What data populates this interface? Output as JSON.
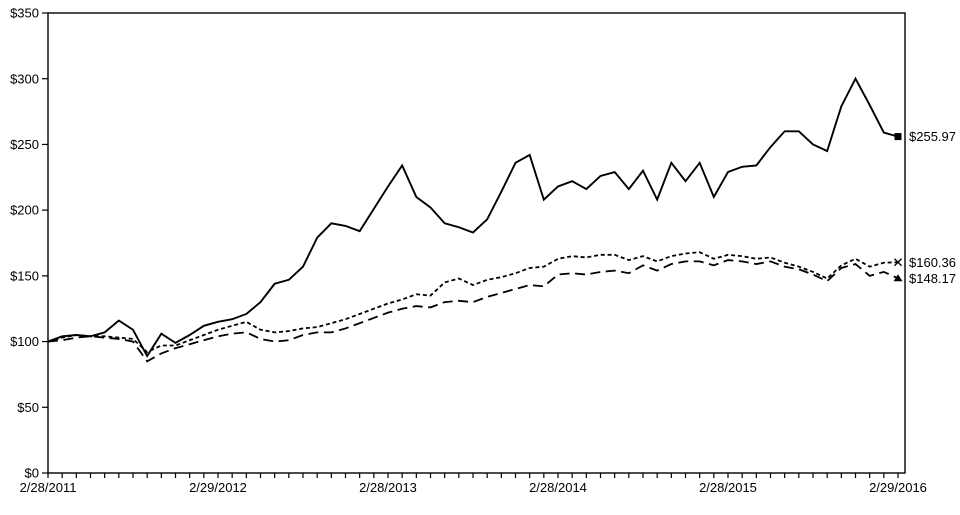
{
  "chart_data": {
    "type": "line",
    "title": "",
    "xlabel": "",
    "ylabel": "",
    "grid": false,
    "legend": "none",
    "background_color": "#ffffff",
    "line_color": "#000000",
    "ylim": [
      0,
      350
    ],
    "x_months_total": 60,
    "x_minor_tick_interval_months": 1,
    "y_ticks": {
      "values": [
        0,
        50,
        100,
        150,
        200,
        250,
        300,
        350
      ],
      "labels": [
        "$0",
        "$50",
        "$100",
        "$150",
        "$200",
        "$250",
        "$300",
        "$350"
      ]
    },
    "x_ticks": {
      "month_positions": [
        0,
        12,
        24,
        36,
        48,
        60
      ],
      "labels": [
        "2/28/2011",
        "2/29/2012",
        "2/28/2013",
        "2/28/2014",
        "2/28/2015",
        "2/29/2016"
      ]
    },
    "series": [
      {
        "name": "solid-line-series",
        "style": "solid",
        "end_marker": "filled-square",
        "end_label": "$255.97",
        "values": [
          100,
          104,
          105,
          104,
          107,
          116,
          109,
          89,
          106,
          99,
          105,
          112,
          115,
          117,
          121,
          130,
          144,
          147,
          157,
          179,
          190,
          188,
          184,
          201,
          218,
          234,
          210,
          202,
          190,
          187,
          183,
          193,
          214,
          236,
          242,
          208,
          218,
          222,
          216,
          226,
          229,
          216,
          230,
          208,
          236,
          222,
          236,
          210,
          229,
          233,
          234,
          248,
          260,
          260,
          250,
          245,
          279,
          300,
          280,
          259,
          255.97
        ]
      },
      {
        "name": "short-dash-line-series",
        "style": "short-dash",
        "end_marker": "x-cross",
        "end_label": "$160.36",
        "values": [
          100,
          103,
          105,
          104,
          104,
          103,
          102,
          92,
          97,
          97,
          101,
          105,
          109,
          112,
          115,
          109,
          107,
          108,
          110,
          111,
          114,
          117,
          121,
          125,
          129,
          132,
          136,
          135,
          145,
          148,
          143,
          147,
          149,
          152,
          156,
          157,
          163,
          165,
          164,
          166,
          166,
          162,
          165,
          161,
          165,
          167,
          168,
          163,
          166,
          165,
          163,
          164,
          160,
          157,
          153,
          148,
          158,
          163,
          157,
          160,
          160.36
        ]
      },
      {
        "name": "long-dash-line-series",
        "style": "long-dash",
        "end_marker": "filled-triangle",
        "end_label": "$148.17",
        "values": [
          100,
          101,
          103,
          104,
          103,
          102,
          100,
          85,
          91,
          95,
          98,
          101,
          104,
          106,
          107,
          102,
          100,
          101,
          105,
          107,
          107,
          110,
          114,
          118,
          122,
          125,
          127,
          126,
          130,
          131,
          130,
          134,
          137,
          140,
          143,
          142,
          151,
          152,
          151,
          153,
          154,
          152,
          158,
          154,
          159,
          161,
          161,
          158,
          162,
          161,
          159,
          161,
          157,
          155,
          151,
          146,
          156,
          159,
          150,
          153,
          148.17
        ]
      }
    ]
  }
}
